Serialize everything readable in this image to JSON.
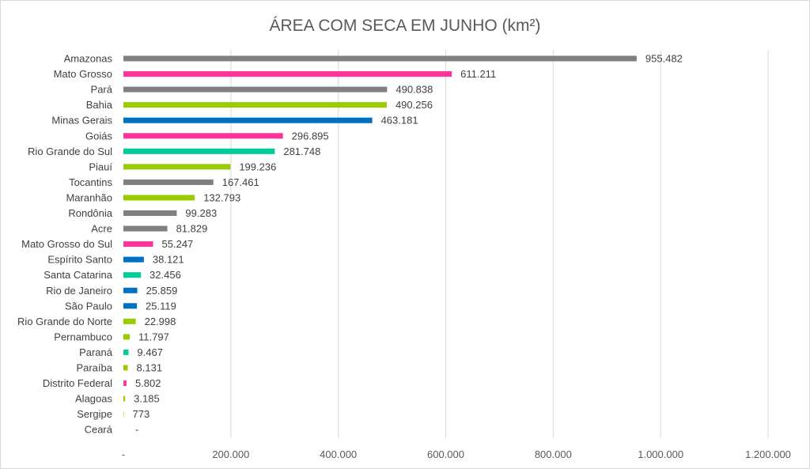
{
  "chart_data": {
    "type": "bar",
    "orientation": "horizontal",
    "title": "ÁREA COM SECA EM JUNHO (km²)",
    "xlabel": "",
    "ylabel": "",
    "xlim": [
      0,
      1200000
    ],
    "grid": true,
    "legend": "none",
    "x_ticks": [
      {
        "value": 0,
        "label": "-"
      },
      {
        "value": 200000,
        "label": "200.000"
      },
      {
        "value": 400000,
        "label": "400.000"
      },
      {
        "value": 600000,
        "label": "600.000"
      },
      {
        "value": 800000,
        "label": "800.000"
      },
      {
        "value": 1000000,
        "label": "1.000.000"
      },
      {
        "value": 1200000,
        "label": "1.200.000"
      }
    ],
    "colors": {
      "gray": "#808080",
      "pink": "#ff3399",
      "lime": "#99cc00",
      "blue": "#0070c0",
      "teal": "#00cc99"
    },
    "bars": [
      {
        "category": "Amazonas",
        "value": 955482,
        "label": "955.482",
        "color": "#808080"
      },
      {
        "category": "Mato Grosso",
        "value": 611211,
        "label": "611.211",
        "color": "#ff3399"
      },
      {
        "category": "Pará",
        "value": 490838,
        "label": "490.838",
        "color": "#808080"
      },
      {
        "category": "Bahia",
        "value": 490256,
        "label": "490.256",
        "color": "#99cc00"
      },
      {
        "category": "Minas Gerais",
        "value": 463181,
        "label": "463.181",
        "color": "#0070c0"
      },
      {
        "category": "Goiás",
        "value": 296895,
        "label": "296.895",
        "color": "#ff3399"
      },
      {
        "category": "Rio Grande do Sul",
        "value": 281748,
        "label": "281.748",
        "color": "#00cc99"
      },
      {
        "category": "Piauí",
        "value": 199236,
        "label": "199.236",
        "color": "#99cc00"
      },
      {
        "category": "Tocantins",
        "value": 167461,
        "label": "167.461",
        "color": "#808080"
      },
      {
        "category": "Maranhão",
        "value": 132793,
        "label": "132.793",
        "color": "#99cc00"
      },
      {
        "category": "Rondônia",
        "value": 99283,
        "label": "99.283",
        "color": "#808080"
      },
      {
        "category": "Acre",
        "value": 81829,
        "label": "81.829",
        "color": "#808080"
      },
      {
        "category": "Mato Grosso do Sul",
        "value": 55247,
        "label": "55.247",
        "color": "#ff3399"
      },
      {
        "category": "Espírito Santo",
        "value": 38121,
        "label": "38.121",
        "color": "#0070c0"
      },
      {
        "category": "Santa Catarina",
        "value": 32456,
        "label": "32.456",
        "color": "#00cc99"
      },
      {
        "category": "Rio de Janeiro",
        "value": 25859,
        "label": "25.859",
        "color": "#0070c0"
      },
      {
        "category": "São Paulo",
        "value": 25119,
        "label": "25.119",
        "color": "#0070c0"
      },
      {
        "category": "Rio Grande do Norte",
        "value": 22998,
        "label": "22.998",
        "color": "#99cc00"
      },
      {
        "category": "Pernambuco",
        "value": 11797,
        "label": "11.797",
        "color": "#99cc00"
      },
      {
        "category": "Paraná",
        "value": 9467,
        "label": "9.467",
        "color": "#00cc99"
      },
      {
        "category": "Paraíba",
        "value": 8131,
        "label": "8.131",
        "color": "#99cc00"
      },
      {
        "category": "Distrito Federal",
        "value": 5802,
        "label": "5.802",
        "color": "#ff3399"
      },
      {
        "category": "Alagoas",
        "value": 3185,
        "label": "3.185",
        "color": "#99cc00"
      },
      {
        "category": "Sergipe",
        "value": 773,
        "label": "773",
        "color": "#99cc00"
      },
      {
        "category": "Ceará",
        "value": 0,
        "label": "-",
        "color": "#99cc00"
      }
    ]
  }
}
